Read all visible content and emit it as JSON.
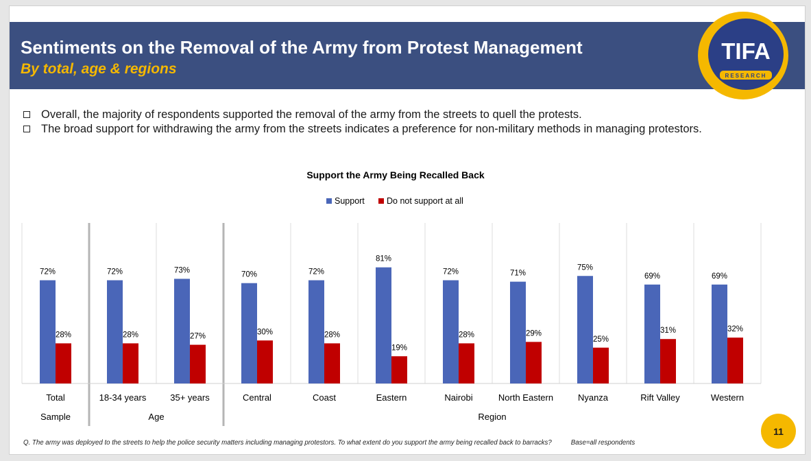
{
  "header": {
    "title": "Sentiments on the Removal of the Army from Protest Management",
    "subtitle": "By total, age & regions"
  },
  "logo": {
    "name": "TIFA",
    "tagline": "RESEARCH"
  },
  "bullets": [
    "Overall, the majority of respondents supported the removal of the army from the streets to quell the protests.",
    "The broad support for withdrawing the army from the streets indicates a preference for non-military methods in managing protestors."
  ],
  "colors": {
    "support": "#4a66b8",
    "not_support": "#c00000",
    "banner": "#3b4f80",
    "accent": "#f5b800"
  },
  "chart_data": {
    "type": "bar",
    "title": "Support the Army Being Recalled Back",
    "categories": [
      "Total",
      "18-34 years",
      "35+ years",
      "Central",
      "Coast",
      "Eastern",
      "Nairobi",
      "North Eastern",
      "Nyanza",
      "Rift Valley",
      "Western"
    ],
    "groups": [
      {
        "label": "Sample",
        "categories": [
          "Total"
        ]
      },
      {
        "label": "Age",
        "categories": [
          "18-34 years",
          "35+ years"
        ]
      },
      {
        "label": "Region",
        "categories": [
          "Central",
          "Coast",
          "Eastern",
          "Nairobi",
          "North Eastern",
          "Nyanza",
          "Rift Valley",
          "Western"
        ]
      }
    ],
    "series": [
      {
        "name": "Support",
        "values": [
          72,
          72,
          73,
          70,
          72,
          81,
          72,
          71,
          75,
          69,
          69
        ]
      },
      {
        "name": "Do not support at all",
        "values": [
          28,
          28,
          27,
          30,
          28,
          19,
          28,
          29,
          25,
          31,
          32
        ]
      }
    ],
    "unit": "%",
    "legend": "top",
    "ylim": [
      0,
      100
    ],
    "grid": false
  },
  "footnote": {
    "question": "Q. The army was deployed to the streets to help the police security matters including managing protestors. To what extent do you support the army being recalled back to barracks?",
    "base": "Base=all respondents"
  },
  "page_number": "11"
}
